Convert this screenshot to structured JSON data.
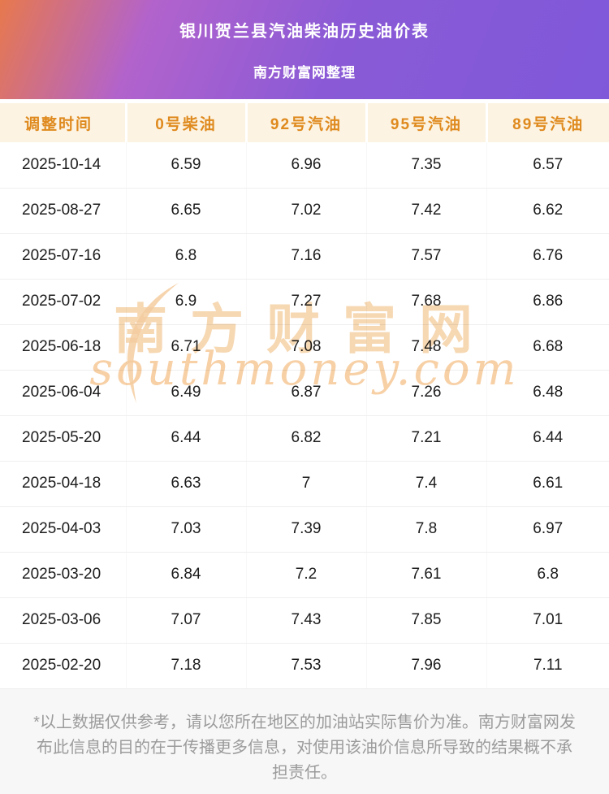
{
  "banner": {
    "title": "银川贺兰县汽油柴油历史油价表",
    "subtitle": "南方财富网整理"
  },
  "chart_data": {
    "type": "table",
    "title": "银川贺兰县汽油柴油历史油价表",
    "columns": [
      "调整时间",
      "0号柴油",
      "92号汽油",
      "95号汽油",
      "89号汽油"
    ],
    "rows": [
      [
        "2025-10-14",
        "6.59",
        "6.96",
        "7.35",
        "6.57"
      ],
      [
        "2025-08-27",
        "6.65",
        "7.02",
        "7.42",
        "6.62"
      ],
      [
        "2025-07-16",
        "6.8",
        "7.16",
        "7.57",
        "6.76"
      ],
      [
        "2025-07-02",
        "6.9",
        "7.27",
        "7.68",
        "6.86"
      ],
      [
        "2025-06-18",
        "6.71",
        "7.08",
        "7.48",
        "6.68"
      ],
      [
        "2025-06-04",
        "6.49",
        "6.87",
        "7.26",
        "6.48"
      ],
      [
        "2025-05-20",
        "6.44",
        "6.82",
        "7.21",
        "6.44"
      ],
      [
        "2025-04-18",
        "6.63",
        "7",
        "7.4",
        "6.61"
      ],
      [
        "2025-04-03",
        "7.03",
        "7.39",
        "7.8",
        "6.97"
      ],
      [
        "2025-03-20",
        "6.84",
        "7.2",
        "7.61",
        "6.8"
      ],
      [
        "2025-03-06",
        "7.07",
        "7.43",
        "7.85",
        "7.01"
      ],
      [
        "2025-02-20",
        "7.18",
        "7.53",
        "7.96",
        "7.11"
      ]
    ]
  },
  "watermark": {
    "cn": "南方财富网",
    "en": "southmoney.com"
  },
  "footer": {
    "disclaimer": "*以上数据仅供参考，请以您所在地区的加油站实际售价为准。南方财富网发布此信息的目的在于传播更多信息，对使用该油价信息所导致的结果概不承担责任。"
  },
  "colors": {
    "banner_gradient_start": "#e7794d",
    "banner_gradient_end": "#7f58da",
    "table_header_bg": "#fcf3e2",
    "table_header_text": "#df8a1e",
    "watermark_tint": "#f3cd9e",
    "disclaimer_text": "#9b9b9b"
  }
}
